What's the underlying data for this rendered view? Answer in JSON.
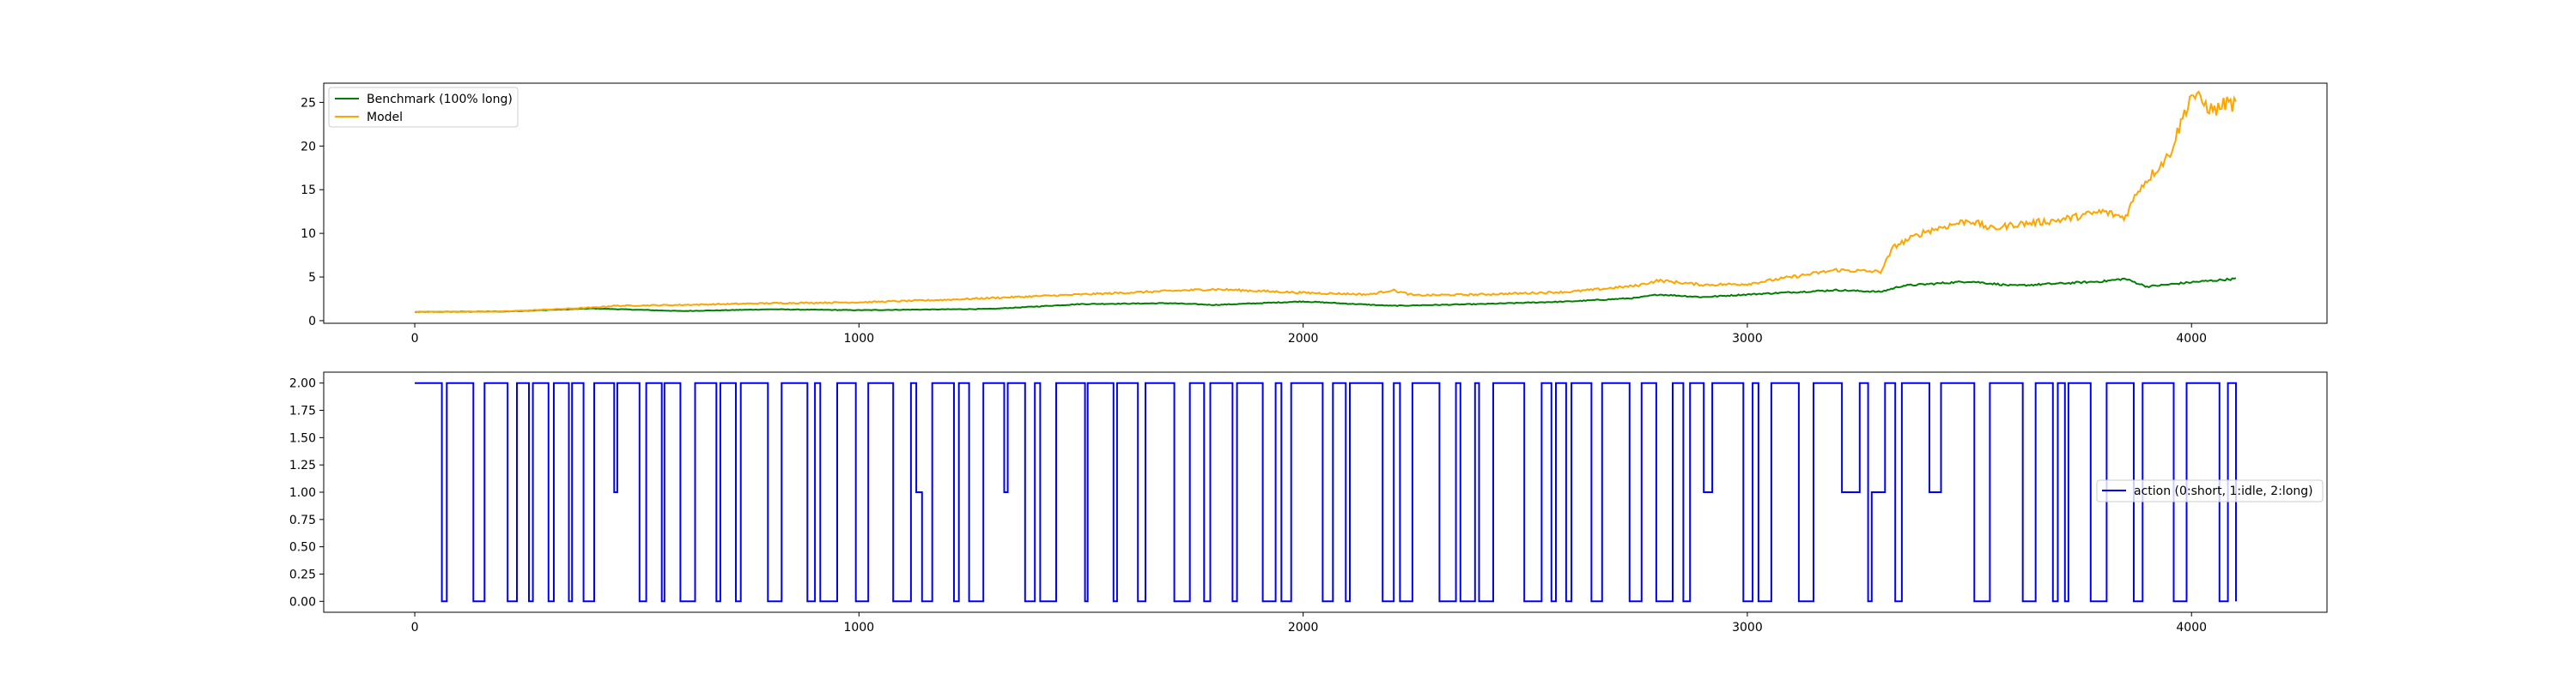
{
  "figure": {
    "background": "#ffffff"
  },
  "chart_data": [
    {
      "type": "line",
      "title": "",
      "xlabel": "",
      "ylabel": "",
      "xlim": [
        -205,
        4305
      ],
      "ylim": [
        -0.3,
        27.2
      ],
      "xticks": [
        0,
        1000,
        2000,
        3000,
        4000
      ],
      "yticks": [
        0,
        5,
        10,
        15,
        20,
        25
      ],
      "xtick_labels": [
        "0",
        "1000",
        "2000",
        "3000",
        "4000"
      ],
      "ytick_labels": [
        "0",
        "5",
        "10",
        "15",
        "20",
        "25"
      ],
      "grid": false,
      "legend": {
        "placement": "upper left",
        "entries": [
          "Benchmark (100% long)",
          "Model"
        ]
      },
      "series": [
        {
          "name": "Benchmark (100% long)",
          "color": "#008000",
          "points": [
            [
              0,
              1.0
            ],
            [
              200,
              1.05
            ],
            [
              400,
              1.4
            ],
            [
              600,
              1.1
            ],
            [
              800,
              1.3
            ],
            [
              1000,
              1.2
            ],
            [
              1200,
              1.3
            ],
            [
              1300,
              1.35
            ],
            [
              1500,
              1.9
            ],
            [
              1700,
              2.0
            ],
            [
              1800,
              1.8
            ],
            [
              2000,
              2.2
            ],
            [
              2200,
              1.7
            ],
            [
              2400,
              1.9
            ],
            [
              2600,
              2.2
            ],
            [
              2750,
              2.6
            ],
            [
              2800,
              3.0
            ],
            [
              2900,
              2.7
            ],
            [
              3000,
              3.0
            ],
            [
              3200,
              3.5
            ],
            [
              3300,
              3.3
            ],
            [
              3350,
              4.0
            ],
            [
              3500,
              4.5
            ],
            [
              3600,
              4.0
            ],
            [
              3800,
              4.5
            ],
            [
              3850,
              4.8
            ],
            [
              3900,
              3.9
            ],
            [
              4000,
              4.4
            ],
            [
              4100,
              4.8
            ]
          ]
        },
        {
          "name": "Model",
          "color": "#ffa500",
          "points": [
            [
              0,
              1.0
            ],
            [
              200,
              1.05
            ],
            [
              400,
              1.5
            ],
            [
              450,
              1.7
            ],
            [
              600,
              1.8
            ],
            [
              800,
              2.0
            ],
            [
              1000,
              2.1
            ],
            [
              1200,
              2.4
            ],
            [
              1500,
              3.0
            ],
            [
              1700,
              3.4
            ],
            [
              1800,
              3.6
            ],
            [
              2000,
              3.2
            ],
            [
              2150,
              3.0
            ],
            [
              2200,
              3.5
            ],
            [
              2250,
              2.9
            ],
            [
              2400,
              3.0
            ],
            [
              2600,
              3.3
            ],
            [
              2750,
              4.0
            ],
            [
              2800,
              4.6
            ],
            [
              2900,
              4.1
            ],
            [
              3000,
              4.2
            ],
            [
              3200,
              5.8
            ],
            [
              3300,
              5.6
            ],
            [
              3330,
              8.5
            ],
            [
              3400,
              10.2
            ],
            [
              3500,
              11.5
            ],
            [
              3550,
              10.5
            ],
            [
              3600,
              11.0
            ],
            [
              3700,
              11.5
            ],
            [
              3800,
              12.5
            ],
            [
              3850,
              11.8
            ],
            [
              3880,
              15.0
            ],
            [
              3950,
              19.0
            ],
            [
              4000,
              26.0
            ],
            [
              4050,
              24.0
            ],
            [
              4080,
              25.0
            ],
            [
              4100,
              24.6
            ]
          ]
        }
      ]
    },
    {
      "type": "line",
      "title": "",
      "xlabel": "",
      "ylabel": "",
      "xlim": [
        -205,
        4305
      ],
      "ylim": [
        -0.1,
        2.1
      ],
      "xticks": [
        0,
        1000,
        2000,
        3000,
        4000
      ],
      "yticks": [
        0,
        0.25,
        0.5,
        0.75,
        1.0,
        1.25,
        1.5,
        1.75,
        2.0
      ],
      "xtick_labels": [
        "0",
        "1000",
        "2000",
        "3000",
        "4000"
      ],
      "ytick_labels": [
        "0.00",
        "0.25",
        "0.50",
        "0.75",
        "1.00",
        "1.25",
        "1.50",
        "1.75",
        "2.00"
      ],
      "grid": false,
      "legend": {
        "placement": "center right",
        "entries": [
          "action (0:short, 1:idle, 2:long)"
        ]
      },
      "series": [
        {
          "name": "action (0:short, 1:idle, 2:long)",
          "color": "#0000ff",
          "x_range": [
            0,
            4100
          ],
          "values": [
            0,
            1,
            2
          ],
          "step_series": true
        }
      ]
    }
  ]
}
